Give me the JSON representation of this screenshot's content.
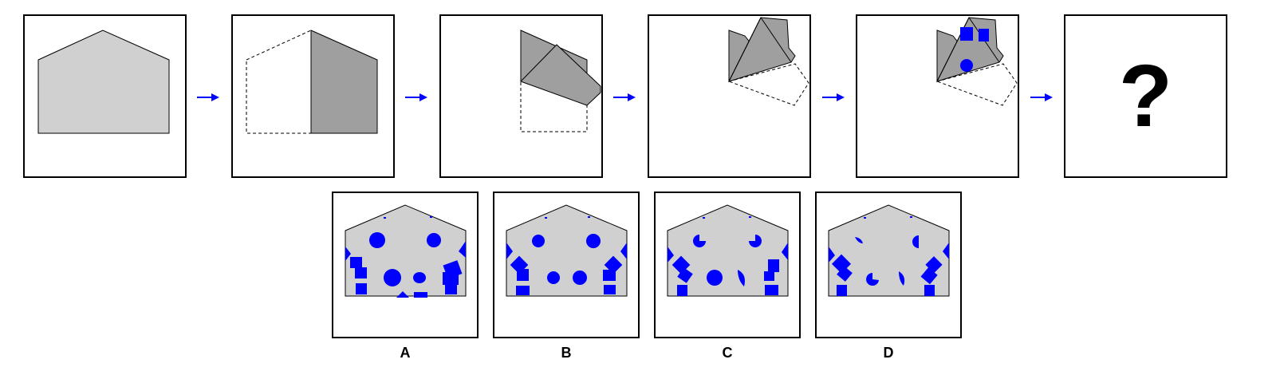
{
  "puzzle": {
    "question_mark": "?",
    "options": [
      {
        "label": "A"
      },
      {
        "label": "B"
      },
      {
        "label": "C"
      },
      {
        "label": "D"
      }
    ]
  },
  "colors": {
    "paper": "#d0d0d0",
    "paper_folded": "#9f9f9f",
    "hole": "#0000ff",
    "arrow": "#0000ff",
    "outline": "#000000"
  }
}
